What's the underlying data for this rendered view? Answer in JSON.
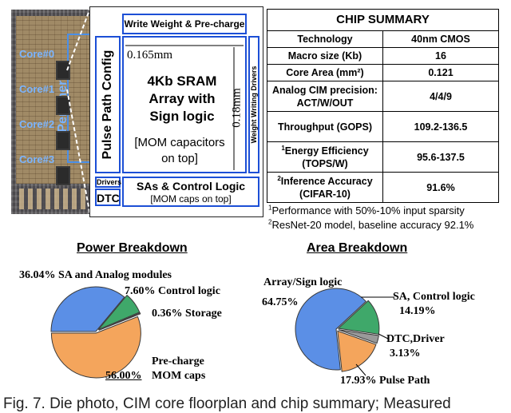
{
  "die_photo": {
    "cores": [
      "Core#0",
      "Core#1",
      "Core#2",
      "Core#3"
    ],
    "peripherals_label": "Peripherals"
  },
  "floorplan": {
    "write_weight_label": "Write Weight & Pre-charge",
    "pulse_path_label": "Pulse Path Config",
    "width_dim": "0.165mm",
    "height_dim": "0.18mm",
    "array_title_lines": [
      "4Kb SRAM",
      "Array with",
      "Sign logic"
    ],
    "array_note_lines": [
      "[MOM capacitors",
      "on top]"
    ],
    "weight_drivers_label": "Weight Writing Drivers",
    "drivers_label": "Drivers",
    "dtc_label": "DTC",
    "sa_label": "SAs & Control Logic",
    "sa_note": "[MOM caps on top]"
  },
  "summary": {
    "title": "CHIP SUMMARY",
    "rows": [
      {
        "param": "Technology",
        "value": "40nm CMOS"
      },
      {
        "param": "Macro size (Kb)",
        "value": "16"
      },
      {
        "param": "Core Area (mm²)",
        "value": "0.121"
      },
      {
        "param": "Analog CIM precision: ACT/W/OUT",
        "value": "4/4/9"
      },
      {
        "param": "Throughput (GOPS)",
        "value": "109.2-136.5"
      },
      {
        "param": "Energy Efficiency (TOPS/W)",
        "value": "95.6-137.5",
        "sup": "1"
      },
      {
        "param": "Inference Accuracy (CIFAR-10)",
        "value": "91.6%",
        "sup": "2"
      }
    ],
    "footnotes": [
      {
        "sup": "1",
        "text": "Performance with 50%-10% input sparsity"
      },
      {
        "sup": "2",
        "text": "ResNet-20 model, baseline accuracy 92.1%"
      }
    ]
  },
  "chart_data": [
    {
      "type": "pie",
      "title": "Power Breakdown",
      "slices": [
        {
          "label": "SA and Analog modules",
          "value": 36.04,
          "color": "#5b8fe6"
        },
        {
          "label": "Control logic",
          "value": 7.6,
          "color": "#3fa86a"
        },
        {
          "label": "Storage",
          "value": 0.36,
          "color": "#9a9a9a"
        },
        {
          "label": "Pre-charge MOM caps",
          "value": 56.0,
          "color": "#f4a55c"
        }
      ],
      "labels": {
        "sa": "36.04% SA and Analog modules",
        "ctrl": "7.60% Control logic",
        "storage": "0.36% Storage",
        "precharge_line1": "Pre-charge",
        "precharge_pct": "56.00%",
        "precharge_line2": "MOM caps"
      }
    },
    {
      "type": "pie",
      "title": "Area Breakdown",
      "slices": [
        {
          "label": "Array/Sign logic",
          "value": 64.75,
          "color": "#5b8fe6"
        },
        {
          "label": "SA, Control logic",
          "value": 14.19,
          "color": "#3fa86a"
        },
        {
          "label": "DTC,Driver",
          "value": 3.13,
          "color": "#9a9a9a"
        },
        {
          "label": "Pulse Path",
          "value": 17.93,
          "color": "#f4a55c"
        }
      ],
      "labels": {
        "array": "Array/Sign logic",
        "array_pct": "64.75%",
        "sa_line1": "SA, Control logic",
        "sa_pct": "14.19%",
        "dtc": "DTC,Driver",
        "dtc_pct": "3.13%",
        "pulse": "17.93% Pulse Path"
      }
    }
  ],
  "caption": "Fig. 7. Die photo, CIM core floorplan and chip summary; Measured"
}
